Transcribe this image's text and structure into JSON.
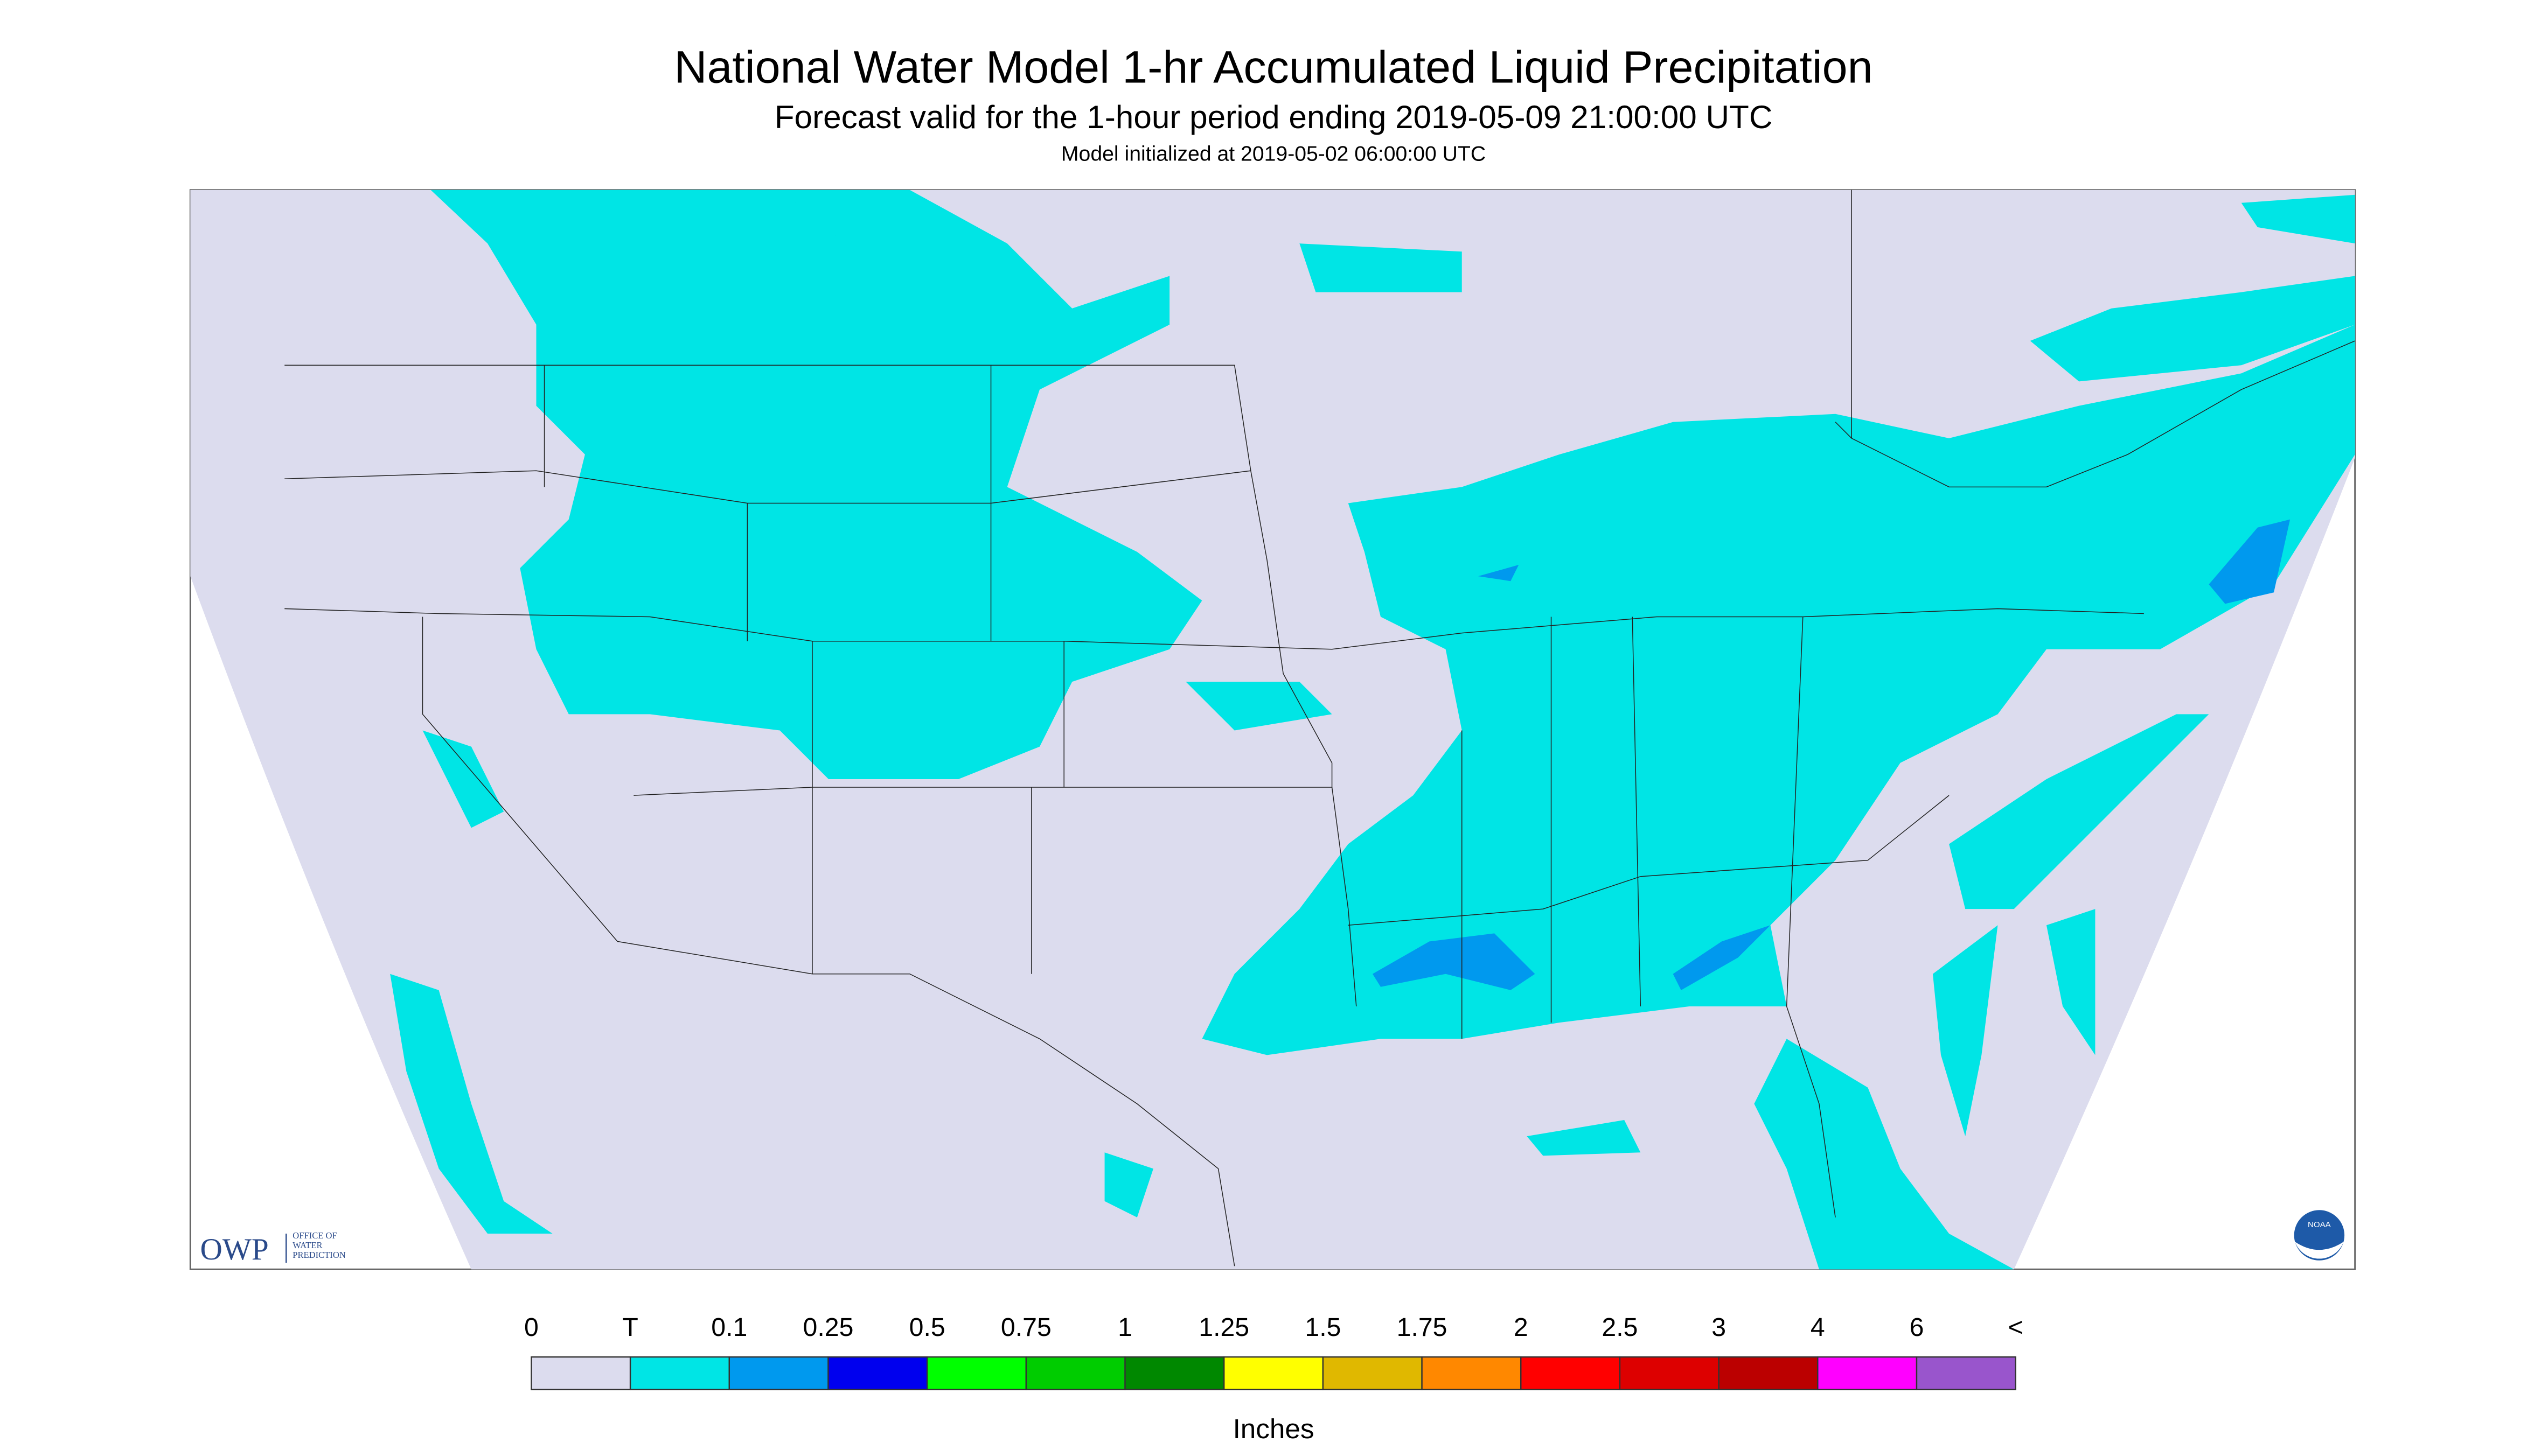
{
  "header": {
    "title": "National Water Model 1-hr Accumulated Liquid Precipitation",
    "subtitle": "Forecast valid for the 1-hour period ending 2019-05-09 21:00:00 UTC",
    "init": "Model initialized at 2019-05-02 06:00:00 UTC"
  },
  "logo": {
    "text": "OWP",
    "lines": [
      "OFFICE OF",
      "WATER",
      "PREDICTION"
    ],
    "noaa": "NOAA"
  },
  "legend": {
    "labels": [
      "0",
      "T",
      "0.1",
      "0.25",
      "0.5",
      "0.75",
      "1",
      "1.25",
      "1.5",
      "1.75",
      "2",
      "2.5",
      "3",
      "4",
      "6",
      "<"
    ],
    "colors": [
      "#dcdcee",
      "#00e5e5",
      "#0099ee",
      "#0000ee",
      "#00ff00",
      "#00cc00",
      "#008800",
      "#ffff00",
      "#e0b800",
      "#ff8800",
      "#ff0000",
      "#dd0000",
      "#bb0000",
      "#ff00ff",
      "#9955cc"
    ],
    "unit": "Inches"
  }
}
